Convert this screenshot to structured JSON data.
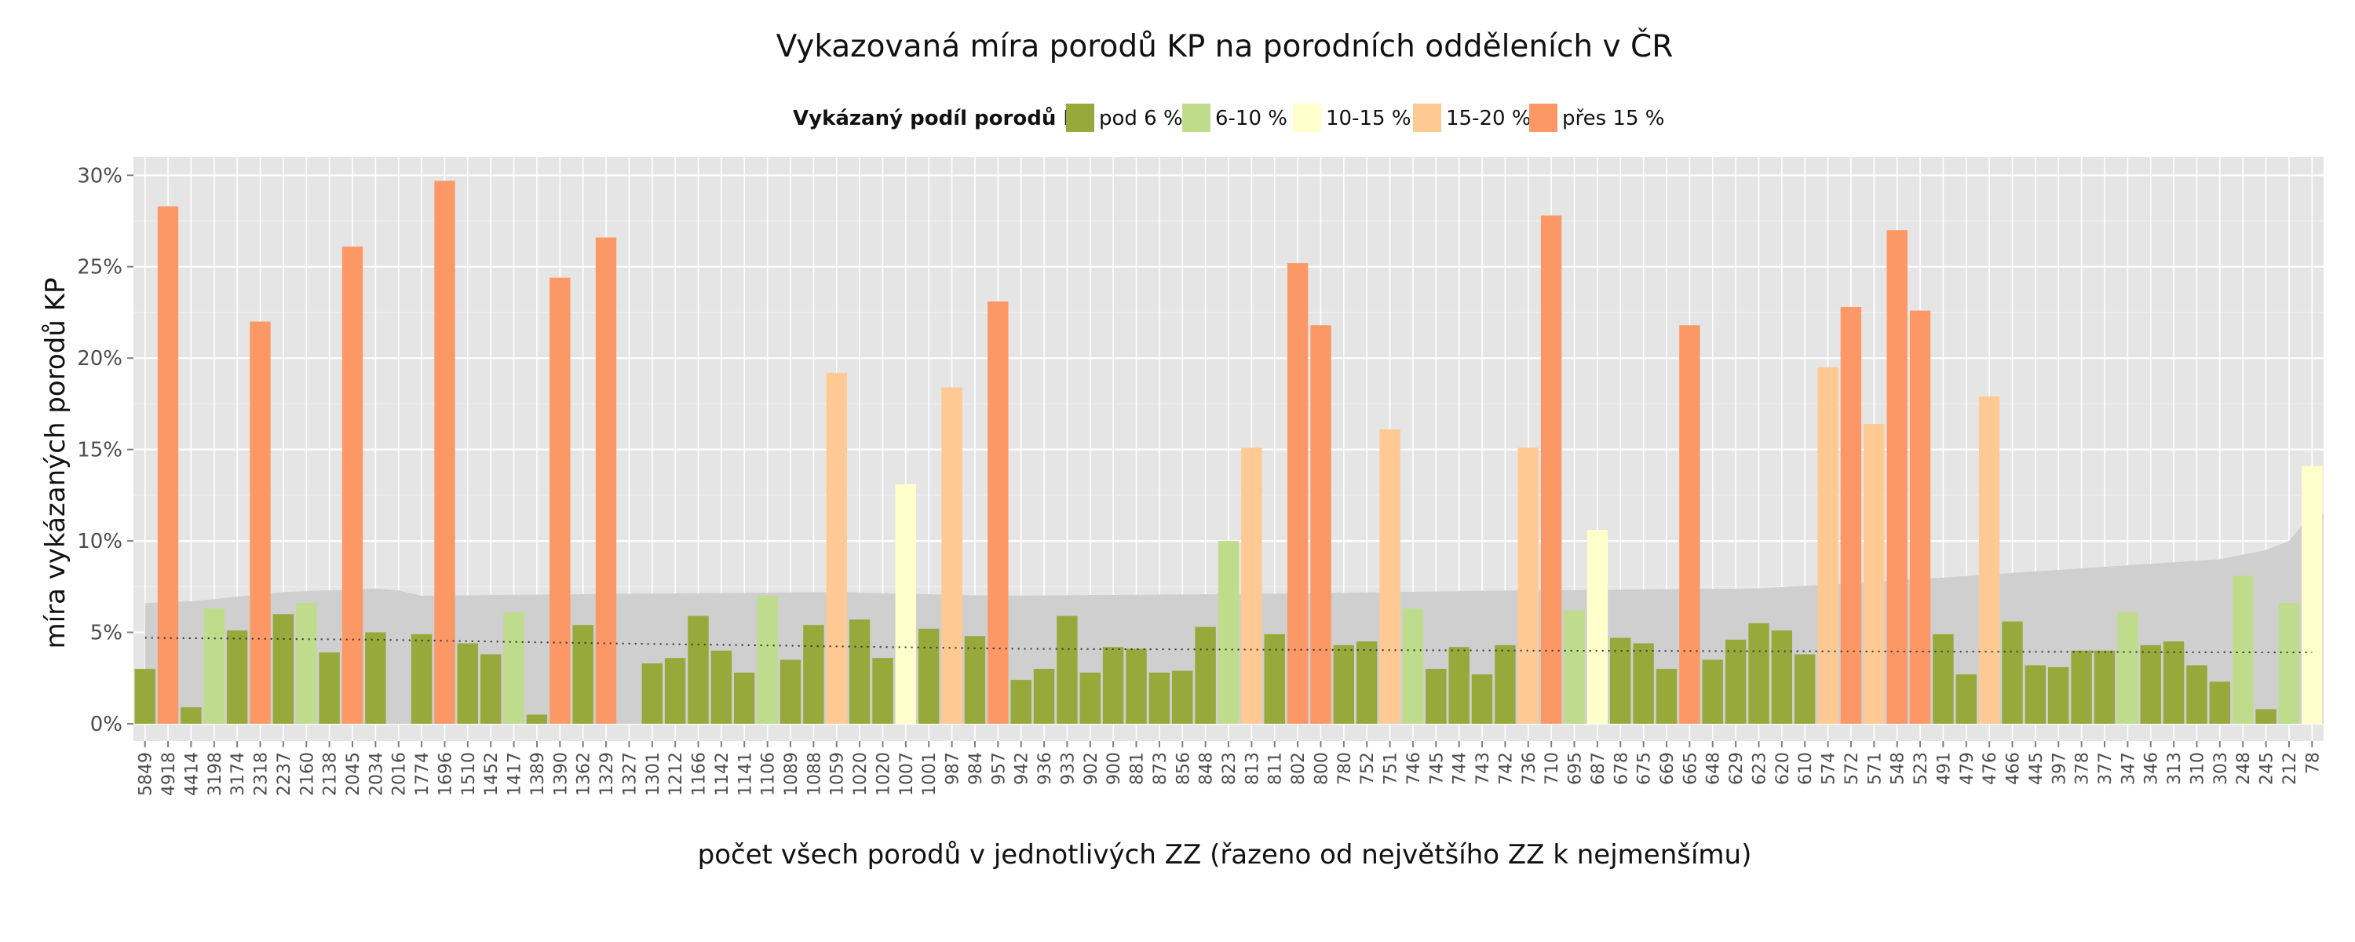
{
  "chart_data": {
    "type": "bar",
    "title": "Vykazovaná míra porodů KP na porodních odděleních v ČR",
    "xlabel": "počet všech porodů v jednotlivých ZZ (řazeno od největšího ZZ k nejmenšímu)",
    "ylabel": "míra vykázaných porodů KP",
    "ylim": [
      0,
      0.31
    ],
    "yticks": [
      0,
      0.05,
      0.1,
      0.15,
      0.2,
      0.25,
      0.3
    ],
    "ytick_labels": [
      "0%",
      "5%",
      "10%",
      "15%",
      "20%",
      "25%",
      "30%"
    ],
    "grid": true,
    "legend": {
      "title": "Vykázaný podíl porodů KP",
      "position": "top",
      "items": [
        {
          "label": "pod 6 %",
          "color": "#97a93a"
        },
        {
          "label": "6-10 %",
          "color": "#bfdc8c"
        },
        {
          "label": "10-15 %",
          "color": "#ffffcc"
        },
        {
          "label": "15-20 %",
          "color": "#ffc993"
        },
        {
          "label": "přes 15 %",
          "color": "#fc9866"
        }
      ]
    },
    "categories": [
      "5849",
      "4918",
      "4414",
      "3198",
      "3174",
      "2318",
      "2237",
      "2160",
      "2138",
      "2045",
      "2034",
      "2016",
      "1774",
      "1696",
      "1510",
      "1452",
      "1417",
      "1389",
      "1390",
      "1362",
      "1329",
      "1327",
      "1301",
      "1212",
      "1166",
      "1142",
      "1141",
      "1106",
      "1089",
      "1088",
      "1059",
      "1020",
      "1020",
      "1007",
      "1001",
      "987",
      "984",
      "957",
      "942",
      "936",
      "933",
      "902",
      "900",
      "881",
      "873",
      "856",
      "848",
      "823",
      "813",
      "811",
      "802",
      "800",
      "780",
      "752",
      "751",
      "746",
      "745",
      "744",
      "743",
      "742",
      "736",
      "710",
      "695",
      "687",
      "678",
      "675",
      "669",
      "665",
      "648",
      "629",
      "623",
      "620",
      "610",
      "574",
      "572",
      "571",
      "548",
      "523",
      "491",
      "479",
      "476",
      "466",
      "445",
      "397",
      "378",
      "377",
      "347",
      "346",
      "313",
      "310",
      "303",
      "248",
      "245",
      "212",
      "78"
    ],
    "values": [
      0.03,
      0.283,
      0.009,
      0.063,
      0.051,
      0.22,
      0.06,
      0.066,
      0.039,
      0.261,
      0.05,
      0.0,
      0.049,
      0.297,
      0.044,
      0.038,
      0.061,
      0.005,
      0.244,
      0.054,
      0.266,
      0.0,
      0.033,
      0.036,
      0.059,
      0.04,
      0.028,
      0.07,
      0.035,
      0.054,
      0.192,
      0.057,
      0.036,
      0.131,
      0.052,
      0.184,
      0.048,
      0.231,
      0.024,
      0.03,
      0.059,
      0.028,
      0.042,
      0.041,
      0.028,
      0.029,
      0.053,
      0.1,
      0.151,
      0.049,
      0.252,
      0.218,
      0.043,
      0.045,
      0.161,
      0.063,
      0.03,
      0.042,
      0.027,
      0.043,
      0.151,
      0.278,
      0.062,
      0.106,
      0.047,
      0.044,
      0.03,
      0.218,
      0.035,
      0.046,
      0.055,
      0.051,
      0.038,
      0.195,
      0.228,
      0.164,
      0.27,
      0.226,
      0.049,
      0.027,
      0.179,
      0.056,
      0.032,
      0.031,
      0.04,
      0.04,
      0.061,
      0.043,
      0.045,
      0.032,
      0.023,
      0.081,
      0.008,
      0.066,
      0.141
    ],
    "classes": [
      0,
      4,
      0,
      1,
      0,
      4,
      0,
      1,
      0,
      4,
      0,
      0,
      0,
      4,
      0,
      0,
      1,
      0,
      4,
      0,
      4,
      0,
      0,
      0,
      0,
      0,
      0,
      1,
      0,
      0,
      3,
      0,
      0,
      2,
      0,
      3,
      0,
      4,
      0,
      0,
      0,
      0,
      0,
      0,
      0,
      0,
      0,
      1,
      3,
      0,
      4,
      4,
      0,
      0,
      3,
      1,
      0,
      0,
      0,
      0,
      3,
      4,
      1,
      2,
      0,
      0,
      0,
      4,
      0,
      0,
      0,
      0,
      0,
      3,
      4,
      3,
      4,
      4,
      0,
      0,
      3,
      0,
      0,
      0,
      0,
      0,
      1,
      0,
      0,
      0,
      0,
      1,
      0,
      1,
      2
    ],
    "background_band": [
      [
        0,
        0.066
      ],
      [
        2,
        0.067
      ],
      [
        6,
        0.072
      ],
      [
        10,
        0.074
      ],
      [
        11,
        0.073
      ],
      [
        12,
        0.07
      ],
      [
        20,
        0.071
      ],
      [
        30,
        0.072
      ],
      [
        37,
        0.07
      ],
      [
        48,
        0.071
      ],
      [
        60,
        0.073
      ],
      [
        70,
        0.074
      ],
      [
        78,
        0.08
      ],
      [
        84,
        0.085
      ],
      [
        90,
        0.09
      ],
      [
        92,
        0.095
      ],
      [
        93,
        0.1
      ],
      [
        94,
        0.115
      ]
    ],
    "reference_line": [
      [
        0,
        0.047
      ],
      [
        10,
        0.046
      ],
      [
        20,
        0.044
      ],
      [
        38,
        0.041
      ],
      [
        60,
        0.04
      ],
      [
        94,
        0.039
      ]
    ]
  }
}
